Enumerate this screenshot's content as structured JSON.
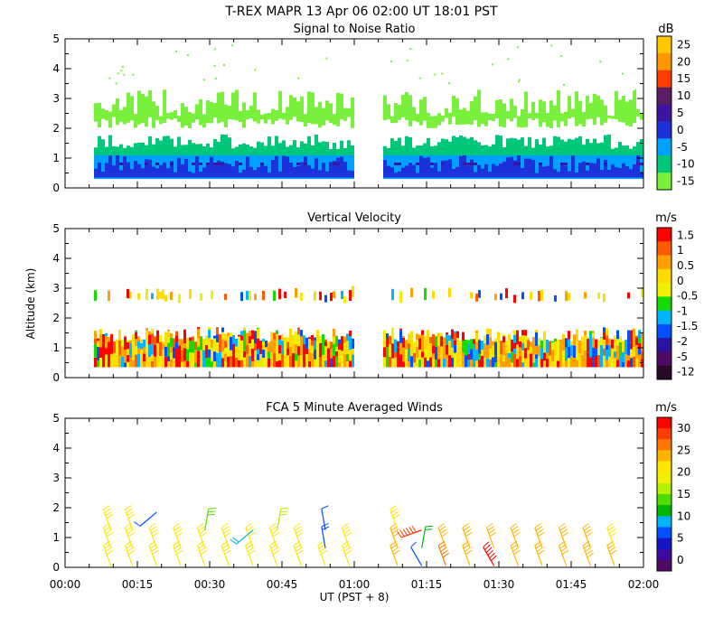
{
  "header": {
    "title": "T-REX   MAPR 13 Apr 06   02:00 UT   18:01   PST"
  },
  "shared": {
    "x_ticks": [
      "00:00",
      "00:15",
      "00:30",
      "00:45",
      "01:00",
      "01:15",
      "01:30",
      "01:45",
      "02:00"
    ],
    "xlabel": "UT  (PST + 8)",
    "ylabel": "Altitude  (km)",
    "y_ticks": [
      "0",
      "1",
      "2",
      "3",
      "4",
      "5"
    ]
  },
  "chart_data": [
    {
      "type": "heatmap",
      "title": "Signal to Noise Ratio",
      "units": "dB",
      "xlim_minutes": [
        0,
        120
      ],
      "ylim": [
        0,
        5
      ],
      "colorbar": {
        "labels": [
          "25",
          "20",
          "15",
          "10",
          "5",
          "0",
          "-5",
          "-10",
          "-15"
        ],
        "colors": [
          "#ffc800",
          "#ff9600",
          "#ff3c00",
          "#5a1e64",
          "#3c14a0",
          "#1e32dc",
          "#00a0ff",
          "#00c878",
          "#78f03c"
        ]
      },
      "segments": [
        [
          6,
          60
        ],
        [
          66,
          120
        ]
      ],
      "layers": [
        {
          "name": "upper layer",
          "dB": -15,
          "alt_km": [
            2.2,
            3.2
          ]
        },
        {
          "name": "mid layer",
          "dB": -10,
          "alt_km": [
            1.3,
            1.7
          ]
        },
        {
          "name": "lower layer",
          "dB": -5,
          "alt_km": [
            0.3,
            1.3
          ]
        },
        {
          "name": "surface layer",
          "dB": 0,
          "alt_km": [
            0.4,
            1.0
          ]
        }
      ]
    },
    {
      "type": "heatmap",
      "title": "Vertical Velocity",
      "units": "m/s",
      "xlim_minutes": [
        0,
        120
      ],
      "ylim": [
        0,
        5
      ],
      "colorbar": {
        "labels": [
          "1.5",
          "1",
          "0.5",
          "0",
          "-0.5",
          "-1",
          "-1.5",
          "-2",
          "-5",
          "-12"
        ],
        "colors": [
          "#ff0000",
          "#ff5a00",
          "#ffa000",
          "#ffdc00",
          "#f0f000",
          "#14dc00",
          "#00b4ff",
          "#0050ff",
          "#2814a0",
          "#500a64",
          "#280a28"
        ]
      },
      "segments": [
        [
          6,
          60
        ],
        [
          66,
          120
        ]
      ],
      "layers": [
        {
          "name": "lower layer",
          "alt_km": [
            0.4,
            1.7
          ]
        },
        {
          "name": "upper layer",
          "alt_km": [
            2.5,
            3.0
          ]
        }
      ]
    },
    {
      "type": "scatter",
      "title": "FCA 5 Minute Averaged Winds",
      "units": "m/s",
      "xlim_minutes": [
        0,
        120
      ],
      "ylim": [
        0,
        5
      ],
      "colorbar": {
        "labels": [
          "30",
          "25",
          "20",
          "15",
          "10",
          "5",
          "0"
        ],
        "colors": [
          "#ff0000",
          "#ff3c00",
          "#ff7800",
          "#ffb400",
          "#ffe600",
          "#f0f000",
          "#b4f000",
          "#50dc00",
          "#00b400",
          "#00b4ff",
          "#0050ff",
          "#1414c8",
          "#3c0aa0",
          "#500a64"
        ]
      },
      "barbs": [
        {
          "x": 9.5,
          "alt": 0.0,
          "speed": 20,
          "dir": 340
        },
        {
          "x": 9.5,
          "alt": 0.6,
          "speed": 20,
          "dir": 340
        },
        {
          "x": 9.5,
          "alt": 1.2,
          "speed": 20,
          "dir": 340
        },
        {
          "x": 14,
          "alt": 0.0,
          "speed": 20,
          "dir": 340
        },
        {
          "x": 14,
          "alt": 0.6,
          "speed": 20,
          "dir": 340
        },
        {
          "x": 14,
          "alt": 1.2,
          "speed": 20,
          "dir": 340
        },
        {
          "x": 19,
          "alt": 0.0,
          "speed": 20,
          "dir": 340
        },
        {
          "x": 19,
          "alt": 0.6,
          "speed": 20,
          "dir": 340
        },
        {
          "x": 19,
          "alt": 1.8,
          "speed": 6,
          "dir": 230
        },
        {
          "x": 24,
          "alt": 0.0,
          "speed": 20,
          "dir": 340
        },
        {
          "x": 24,
          "alt": 0.6,
          "speed": 20,
          "dir": 340
        },
        {
          "x": 29,
          "alt": 0.0,
          "speed": 20,
          "dir": 340
        },
        {
          "x": 29,
          "alt": 0.6,
          "speed": 20,
          "dir": 340
        },
        {
          "x": 29,
          "alt": 1.2,
          "speed": 14,
          "dir": 10
        },
        {
          "x": 34,
          "alt": 0.0,
          "speed": 20,
          "dir": 340
        },
        {
          "x": 34,
          "alt": 0.6,
          "speed": 20,
          "dir": 340
        },
        {
          "x": 39,
          "alt": 0.0,
          "speed": 20,
          "dir": 340
        },
        {
          "x": 39,
          "alt": 0.6,
          "speed": 20,
          "dir": 340
        },
        {
          "x": 39,
          "alt": 1.2,
          "speed": 10,
          "dir": 230
        },
        {
          "x": 44,
          "alt": 0.0,
          "speed": 20,
          "dir": 340
        },
        {
          "x": 44,
          "alt": 0.6,
          "speed": 20,
          "dir": 340
        },
        {
          "x": 44,
          "alt": 1.2,
          "speed": 16,
          "dir": 10
        },
        {
          "x": 49,
          "alt": 0.0,
          "speed": 20,
          "dir": 340
        },
        {
          "x": 49,
          "alt": 0.6,
          "speed": 20,
          "dir": 340
        },
        {
          "x": 54,
          "alt": 0.0,
          "speed": 20,
          "dir": 340
        },
        {
          "x": 54,
          "alt": 0.6,
          "speed": 8,
          "dir": 350
        },
        {
          "x": 54,
          "alt": 1.2,
          "speed": 6,
          "dir": 350
        },
        {
          "x": 59,
          "alt": 0.0,
          "speed": 20,
          "dir": 340
        },
        {
          "x": 59,
          "alt": 0.6,
          "speed": 20,
          "dir": 340
        },
        {
          "x": 69,
          "alt": 0.0,
          "speed": 22,
          "dir": 340
        },
        {
          "x": 69,
          "alt": 0.6,
          "speed": 22,
          "dir": 340
        },
        {
          "x": 69,
          "alt": 1.2,
          "speed": 20,
          "dir": 340
        },
        {
          "x": 74,
          "alt": 0.0,
          "speed": 6,
          "dir": 330
        },
        {
          "x": 74,
          "alt": 0.6,
          "speed": 12,
          "dir": 10
        },
        {
          "x": 74,
          "alt": 1.2,
          "speed": 28,
          "dir": 250
        },
        {
          "x": 79,
          "alt": 0.0,
          "speed": 26,
          "dir": 340
        },
        {
          "x": 79,
          "alt": 0.6,
          "speed": 22,
          "dir": 340
        },
        {
          "x": 84,
          "alt": 0.0,
          "speed": 22,
          "dir": 340
        },
        {
          "x": 84,
          "alt": 0.6,
          "speed": 22,
          "dir": 340
        },
        {
          "x": 89,
          "alt": 0.0,
          "speed": 30,
          "dir": 330
        },
        {
          "x": 89,
          "alt": 0.6,
          "speed": 22,
          "dir": 340
        },
        {
          "x": 94,
          "alt": 0.0,
          "speed": 22,
          "dir": 340
        },
        {
          "x": 94,
          "alt": 0.6,
          "speed": 22,
          "dir": 340
        },
        {
          "x": 99,
          "alt": 0.0,
          "speed": 22,
          "dir": 340
        },
        {
          "x": 99,
          "alt": 0.6,
          "speed": 22,
          "dir": 340
        },
        {
          "x": 104,
          "alt": 0.0,
          "speed": 22,
          "dir": 340
        },
        {
          "x": 104,
          "alt": 0.6,
          "speed": 22,
          "dir": 340
        },
        {
          "x": 109,
          "alt": 0.0,
          "speed": 24,
          "dir": 340
        },
        {
          "x": 109,
          "alt": 0.6,
          "speed": 22,
          "dir": 340
        },
        {
          "x": 114,
          "alt": 0.0,
          "speed": 22,
          "dir": 340
        },
        {
          "x": 114,
          "alt": 0.6,
          "speed": 20,
          "dir": 340
        }
      ]
    }
  ]
}
